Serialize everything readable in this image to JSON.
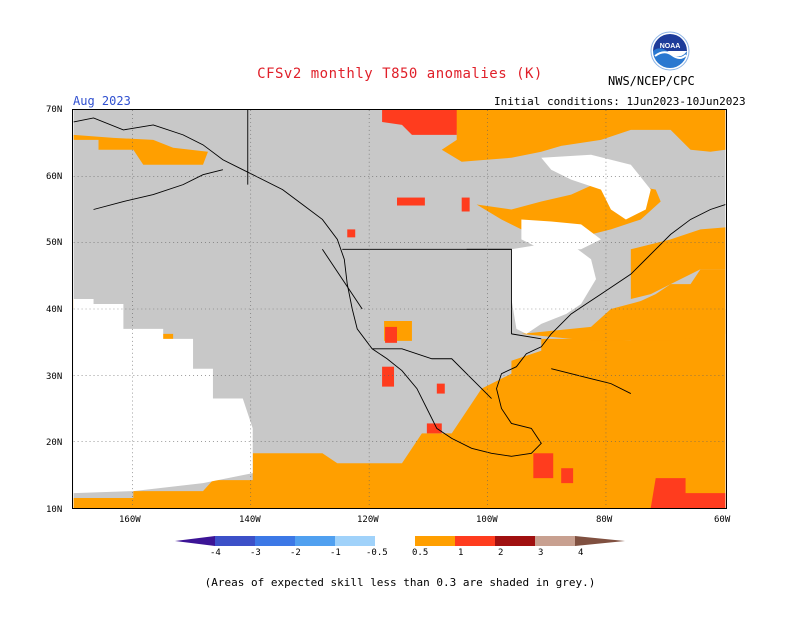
{
  "title": "CFSv2 monthly T850 anomalies (K)",
  "period": "Aug 2023",
  "initial_conditions": "Initial conditions: 1Jun2023-10Jun2023",
  "agency": "NWS/NCEP/CPC",
  "logo_text": "NOAA",
  "footnote": "(Areas of expected skill less than 0.3 are shaded in grey.)",
  "map": {
    "lat_labels": [
      "70N",
      "60N",
      "50N",
      "40N",
      "30N",
      "20N",
      "10N"
    ],
    "lon_labels": [
      "160W",
      "140W",
      "120W",
      "100W",
      "80W",
      "60W"
    ],
    "lon_range": [
      -170,
      -60
    ],
    "lat_range": [
      10,
      70
    ],
    "colors": {
      "grey_low_skill": "#c8c8c8",
      "neutral": "#ffffff",
      "pos_0_5_1": "#ff9f00",
      "pos_1_2": "#ff3c1e",
      "pos_2_3": "#d21414",
      "pos_3_4": "#c8a090",
      "pos_4_plus": "#805040"
    }
  },
  "colorbar": {
    "labels": [
      "-4",
      "-3",
      "-2",
      "-1",
      "-0.5",
      "0.5",
      "1",
      "2",
      "3",
      "4"
    ],
    "colors": [
      "#3c1496",
      "#3c50c8",
      "#3c78e6",
      "#50a0f0",
      "#a0d2fa",
      "#ffffff",
      "#ff9f00",
      "#ff3c1e",
      "#a01010",
      "#c8a090",
      "#805040"
    ]
  }
}
